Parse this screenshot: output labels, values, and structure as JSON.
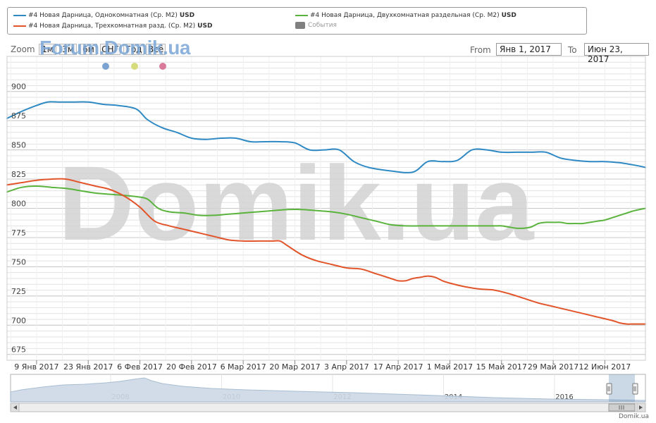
{
  "legend": {
    "series": [
      {
        "label": "#4 Новая Дарница, Однокомнатная (Ср. M2)",
        "unit": "USD",
        "color": "#2f8ac4"
      },
      {
        "label": "#4 Новая Дарница, Двухкомнатная раздельная (Ср. M2)",
        "unit": "USD",
        "color": "#5ab33c"
      },
      {
        "label": "#4 Новая Дарница, Трехкомнатная разд. (Ср. M2)",
        "unit": "USD",
        "color": "#e2542a"
      }
    ],
    "events_label": "События"
  },
  "zoom": {
    "label": "Zoom",
    "buttons": [
      "1м",
      "3м",
      "6м",
      "СНГ",
      "Год",
      "Всё"
    ]
  },
  "watermark_logo": "Forum.Domik.ua",
  "watermark_text": "Domik.ua",
  "range": {
    "from_label": "From",
    "from_value": "Янв 1, 2017",
    "to_label": "To",
    "to_value": "Июн 23, 2017"
  },
  "marker_colors": [
    "#7ba3d1",
    "#d6dc7d",
    "#d97a9a"
  ],
  "navigator": {
    "year_labels": [
      "2008",
      "2010",
      "2012",
      "2014",
      "2016"
    ]
  },
  "credit": "Domik.ua",
  "chart_data": {
    "type": "line",
    "y_ticks": [
      675,
      700,
      725,
      750,
      775,
      800,
      825,
      850,
      875,
      900
    ],
    "ylim": [
      670,
      930
    ],
    "x_ticks": [
      "9 Янв 2017",
      "23 Янв 2017",
      "6 Фев 2017",
      "20 Фев 2017",
      "6 Мар 2017",
      "20 Мар 2017",
      "3 Апр 2017",
      "17 Апр 2017",
      "1 Май 2017",
      "15 Май 2017",
      "29 Май 2017",
      "12 Июн 2017"
    ],
    "x_tick_days": [
      8,
      22,
      36,
      50,
      64,
      78,
      92,
      106,
      120,
      134,
      148,
      162
    ],
    "xlim_days": [
      0,
      173
    ],
    "grid": true,
    "series": [
      {
        "name": "#4 Новая Дарница, Однокомнатная (Ср. M2)",
        "color": "#2f8ac4",
        "x_days": [
          0,
          4,
          8,
          11,
          14,
          18,
          22,
          26,
          30,
          35,
          38,
          42,
          46,
          50,
          54,
          58,
          62,
          66,
          70,
          74,
          78,
          82,
          86,
          90,
          94,
          98,
          104,
          110,
          114,
          118,
          122,
          126,
          130,
          134,
          138,
          142,
          146,
          150,
          154,
          158,
          162,
          166,
          170,
          173
        ],
        "values": [
          877,
          883,
          888,
          891,
          891,
          891,
          891,
          889,
          888,
          885,
          876,
          869,
          865,
          860,
          859,
          860,
          860,
          857,
          857,
          857,
          856,
          850,
          850,
          850,
          840,
          835,
          832,
          831,
          840,
          840,
          841,
          850,
          850,
          848,
          848,
          848,
          848,
          843,
          841,
          840,
          840,
          839,
          837,
          835
        ]
      },
      {
        "name": "#4 Новая Дарница, Двухкомнатная раздельная (Ср. M2)",
        "color": "#5ab33c",
        "x_days": [
          0,
          4,
          8,
          12,
          16,
          20,
          24,
          28,
          32,
          35,
          38,
          41,
          44,
          48,
          52,
          56,
          60,
          64,
          68,
          72,
          76,
          80,
          84,
          88,
          92,
          96,
          100,
          104,
          108,
          112,
          116,
          120,
          124,
          128,
          132,
          134,
          136,
          138,
          140,
          142,
          144,
          146,
          148,
          150,
          152,
          154,
          156,
          158,
          160,
          162,
          164,
          166,
          168,
          170,
          173
        ],
        "values": [
          814,
          818,
          819,
          818,
          817,
          815,
          813,
          812,
          811,
          810,
          808,
          800,
          797,
          796,
          794,
          794,
          795,
          796,
          797,
          798,
          799,
          799,
          798,
          797,
          795,
          792,
          789,
          786,
          785,
          785,
          785,
          785,
          785,
          785,
          785,
          785,
          784,
          783,
          783,
          784,
          787,
          788,
          788,
          788,
          787,
          787,
          787,
          788,
          789,
          790,
          792,
          794,
          796,
          798,
          800
        ]
      },
      {
        "name": "#4 Новая Дарница, Трехкомнатная разд. (Ср. M2)",
        "color": "#e2542a",
        "x_days": [
          0,
          4,
          8,
          12,
          16,
          20,
          24,
          28,
          32,
          36,
          40,
          44,
          48,
          52,
          56,
          60,
          64,
          68,
          70,
          72,
          74,
          76,
          80,
          84,
          88,
          92,
          96,
          100,
          104,
          106,
          108,
          110,
          112,
          114,
          116,
          118,
          120,
          124,
          128,
          132,
          136,
          140,
          144,
          148,
          152,
          156,
          160,
          164,
          166,
          168,
          170,
          173
        ],
        "values": [
          820,
          822,
          824,
          825,
          825,
          822,
          819,
          816,
          810,
          801,
          789,
          785,
          782,
          779,
          776,
          773,
          772,
          772,
          772,
          772,
          772,
          768,
          760,
          755,
          752,
          749,
          748,
          744,
          740,
          738,
          738,
          740,
          741,
          742,
          741,
          738,
          736,
          733,
          731,
          730,
          727,
          723,
          719,
          716,
          713,
          710,
          707,
          704,
          702,
          701,
          701,
          701
        ]
      }
    ]
  }
}
